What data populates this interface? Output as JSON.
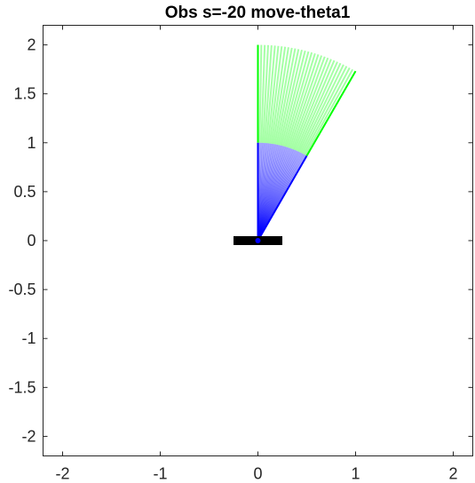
{
  "chart_data": {
    "type": "line",
    "title": "Obs s=-20 move-theta1",
    "xlabel": "",
    "ylabel": "",
    "xlim": [
      -2.2,
      2.2
    ],
    "ylim": [
      -2.2,
      2.2
    ],
    "x_ticks": [
      -2,
      -1,
      0,
      1,
      2
    ],
    "x_tick_labels": [
      "-2",
      "-1",
      "0",
      "1",
      "2"
    ],
    "y_ticks": [
      -2,
      -1.5,
      -1,
      -0.5,
      0,
      0.5,
      1,
      1.5,
      2
    ],
    "y_tick_labels": [
      "-2",
      "-1.5",
      "-1",
      "-0.5",
      "0",
      "0.5",
      "1",
      "1.5",
      "2"
    ],
    "grid": false,
    "base": {
      "x": [
        -0.25,
        0.25
      ],
      "y": 0,
      "color": "#000000"
    },
    "link1": {
      "length": 1,
      "color": "#0000ff",
      "theta_start_deg": 90,
      "theta_end_deg": 60,
      "frames": 31
    },
    "link2": {
      "length": 1,
      "color": "#00ff00",
      "relative_angle_deg": 0
    }
  }
}
